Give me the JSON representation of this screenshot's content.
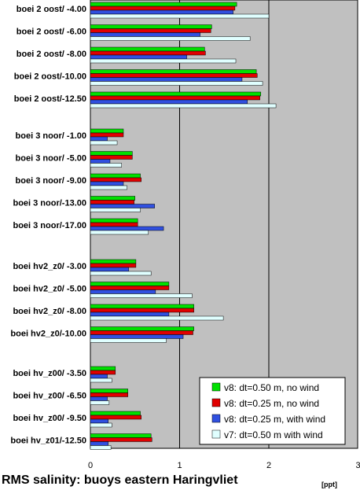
{
  "chart_data": {
    "type": "bar",
    "orientation": "horizontal",
    "title": "RMS salinity: buoys eastern Haringvliet",
    "xlabel": "[ppt]",
    "xlim": [
      0,
      3
    ],
    "xticks": [
      "0",
      "1",
      "2",
      "3"
    ],
    "grid": "vertical",
    "legend_position": "bottom-right",
    "groups": [
      {
        "categories": [
          "boei 2 oost/ -4.00",
          "boei 2 oost/ -6.00",
          "boei 2 oost/ -8.00",
          "boei 2 oost/-10.00",
          "boei 2 oost/-12.50"
        ]
      },
      {
        "categories": [
          "boei 3 noor/ -1.00",
          "boei 3 noor/ -5.00",
          "boei 3 noor/ -9.00",
          "boei 3 noor/-13.00",
          "boei 3 noor/-17.00"
        ]
      },
      {
        "categories": [
          "boei hv2_z0/ -3.00",
          "boei hv2_z0/ -5.00",
          "boei hv2_z0/ -8.00",
          "boei hv2_z0/-10.00"
        ]
      },
      {
        "categories": [
          "boei hv_z00/ -3.50",
          "boei hv_z00/ -6.50",
          "boei hv_z00/ -9.50",
          "boei hv_z01/-12.50"
        ]
      }
    ],
    "series": [
      {
        "name": "v8: dt=0.50 m, no wind",
        "color": "#00e000",
        "values": [
          1.64,
          1.36,
          1.28,
          1.86,
          1.91,
          0.37,
          0.47,
          0.56,
          0.5,
          0.53,
          0.51,
          0.88,
          1.16,
          1.16,
          0.28,
          0.42,
          0.56,
          0.68
        ]
      },
      {
        "name": "v8: dt=0.25 m, no wind",
        "color": "#e00000",
        "values": [
          1.62,
          1.35,
          1.29,
          1.87,
          1.9,
          0.37,
          0.47,
          0.57,
          0.49,
          0.53,
          0.51,
          0.88,
          1.16,
          1.15,
          0.28,
          0.42,
          0.57,
          0.69
        ]
      },
      {
        "name": "v8: dt=0.25 m, with wind",
        "color": "#3050e0",
        "values": [
          1.6,
          1.23,
          1.08,
          1.7,
          1.76,
          0.19,
          0.22,
          0.37,
          0.72,
          0.82,
          0.43,
          0.73,
          0.88,
          1.04,
          0.19,
          0.19,
          0.2,
          0.2
        ]
      },
      {
        "name": "v7: dt=0.50 m with wind",
        "color": "#e0ffff",
        "values": [
          2.0,
          1.79,
          1.63,
          1.93,
          2.08,
          0.3,
          0.35,
          0.41,
          0.56,
          0.65,
          0.68,
          1.14,
          1.49,
          0.85,
          0.24,
          0.21,
          0.24,
          0.23
        ]
      }
    ]
  }
}
